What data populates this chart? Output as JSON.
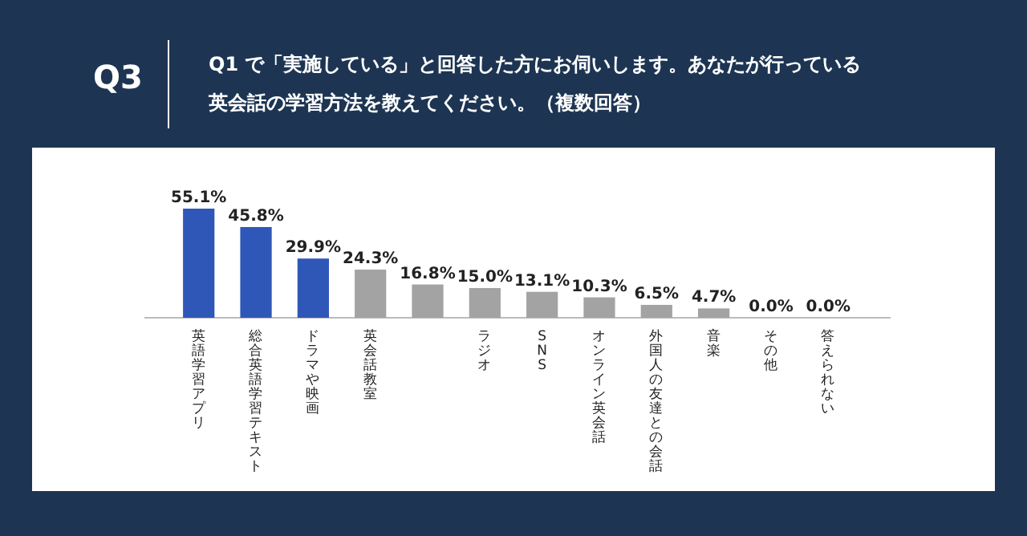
{
  "chart_data": {
    "type": "bar",
    "title": "Q3",
    "subtitle": "Q1 で「実施している」と回答した方にお伺いします。あなたが行っている英会話の学習方法を教えてください。（複数回答）",
    "categories": [
      "英語学習アプリ",
      "総合英語学習テキスト",
      "ドラマや映画",
      "英会話教室",
      null,
      "ラジオ",
      "SNS",
      "オンライン英会話",
      "外国人の友達との会話",
      "音楽",
      "その他",
      "答えられない"
    ],
    "values": [
      55.1,
      45.8,
      29.9,
      24.3,
      16.8,
      15.0,
      13.1,
      10.3,
      6.5,
      4.7,
      0.0,
      0.0
    ],
    "value_labels": [
      "55.1%",
      "45.8%",
      "29.9%",
      "24.3%",
      "16.8%",
      "15.0%",
      "13.1%",
      "10.3%",
      "6.5%",
      "4.7%",
      "0.0%",
      "0.0%"
    ],
    "colors": [
      "#2f57b8",
      "#2f57b8",
      "#2f57b8",
      "#a3a3a3",
      "#a3a3a3",
      "#a3a3a3",
      "#a3a3a3",
      "#a3a3a3",
      "#a3a3a3",
      "#a3a3a3",
      "#a3a3a3",
      "#a3a3a3"
    ]
  }
}
